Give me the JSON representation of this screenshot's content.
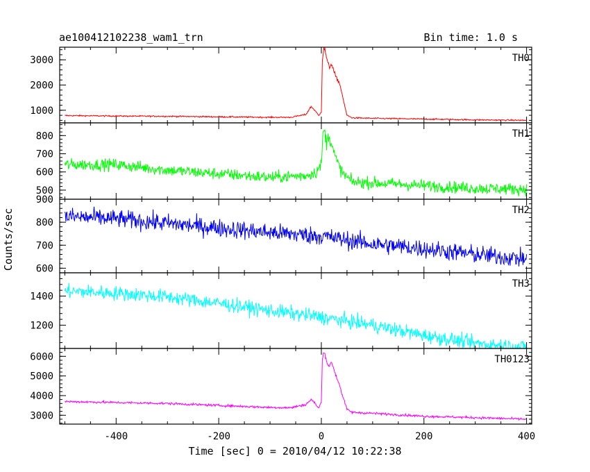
{
  "chart_data": {
    "type": "line",
    "title": "ae100412102238_wam1_trn",
    "bin_time": "Bin time: 1.0 s",
    "xlabel": "Time [sec] 0 = 2010/04/12 10:22:38",
    "ylabel": "Counts/sec",
    "xlim": [
      -510,
      410
    ],
    "xticks": [
      -400,
      -200,
      0,
      200,
      400
    ],
    "grid": false,
    "panels": [
      {
        "name": "TH0",
        "color": "#ff0000",
        "ylim": [
          500,
          3500
        ],
        "yticks": [
          1000,
          2000,
          3000
        ],
        "noise": 25,
        "points": [
          [
            -500,
            790
          ],
          [
            -400,
            770
          ],
          [
            -300,
            760
          ],
          [
            -200,
            740
          ],
          [
            -100,
            720
          ],
          [
            -60,
            720
          ],
          [
            -30,
            830
          ],
          [
            -20,
            1150
          ],
          [
            -12,
            980
          ],
          [
            -5,
            780
          ],
          [
            0,
            950
          ],
          [
            2,
            3000
          ],
          [
            5,
            3500
          ],
          [
            8,
            3300
          ],
          [
            12,
            2900
          ],
          [
            16,
            2700
          ],
          [
            20,
            2850
          ],
          [
            25,
            2500
          ],
          [
            30,
            2250
          ],
          [
            35,
            2100
          ],
          [
            40,
            1700
          ],
          [
            45,
            1200
          ],
          [
            50,
            800
          ],
          [
            60,
            700
          ],
          [
            100,
            680
          ],
          [
            200,
            650
          ],
          [
            300,
            620
          ],
          [
            400,
            600
          ]
        ]
      },
      {
        "name": "TH1",
        "color": "#00ff00",
        "ylim": [
          450,
          870
        ],
        "yticks": [
          500,
          600,
          700,
          800
        ],
        "noise": 30,
        "points": [
          [
            -500,
            640
          ],
          [
            -400,
            640
          ],
          [
            -300,
            610
          ],
          [
            -200,
            590
          ],
          [
            -100,
            570
          ],
          [
            -30,
            580
          ],
          [
            -10,
            600
          ],
          [
            0,
            640
          ],
          [
            3,
            800
          ],
          [
            6,
            830
          ],
          [
            10,
            760
          ],
          [
            15,
            800
          ],
          [
            20,
            760
          ],
          [
            25,
            700
          ],
          [
            30,
            660
          ],
          [
            40,
            600
          ],
          [
            50,
            570
          ],
          [
            60,
            545
          ],
          [
            100,
            540
          ],
          [
            200,
            525
          ],
          [
            300,
            510
          ],
          [
            400,
            505
          ]
        ]
      },
      {
        "name": "TH2",
        "color": "#0000ff",
        "ylim": [
          580,
          900
        ],
        "yticks": [
          600,
          700,
          800,
          900
        ],
        "noise": 36,
        "points": [
          [
            -500,
            825
          ],
          [
            -400,
            815
          ],
          [
            -300,
            795
          ],
          [
            -200,
            775
          ],
          [
            -100,
            755
          ],
          [
            0,
            740
          ],
          [
            100,
            705
          ],
          [
            200,
            685
          ],
          [
            300,
            660
          ],
          [
            400,
            640
          ]
        ]
      },
      {
        "name": "TH3",
        "color": "#00ffff",
        "ylim": [
          1040,
          1560
        ],
        "yticks": [
          1200,
          1400
        ],
        "noise": 45,
        "points": [
          [
            -500,
            1435
          ],
          [
            -400,
            1420
          ],
          [
            -300,
            1395
          ],
          [
            -200,
            1350
          ],
          [
            -100,
            1300
          ],
          [
            0,
            1255
          ],
          [
            100,
            1200
          ],
          [
            200,
            1130
          ],
          [
            300,
            1075
          ],
          [
            400,
            1050
          ]
        ]
      },
      {
        "name": "TH0123",
        "color": "#ff00ff",
        "ylim": [
          2550,
          6400
        ],
        "yticks": [
          3000,
          4000,
          5000,
          6000
        ],
        "noise": 55,
        "points": [
          [
            -500,
            3700
          ],
          [
            -400,
            3650
          ],
          [
            -300,
            3600
          ],
          [
            -200,
            3500
          ],
          [
            -100,
            3400
          ],
          [
            -60,
            3380
          ],
          [
            -30,
            3550
          ],
          [
            -20,
            3800
          ],
          [
            -12,
            3600
          ],
          [
            -5,
            3350
          ],
          [
            0,
            3700
          ],
          [
            2,
            5800
          ],
          [
            5,
            6300
          ],
          [
            8,
            6000
          ],
          [
            12,
            5600
          ],
          [
            16,
            5500
          ],
          [
            20,
            5700
          ],
          [
            25,
            5300
          ],
          [
            30,
            4900
          ],
          [
            35,
            4600
          ],
          [
            40,
            4100
          ],
          [
            45,
            3700
          ],
          [
            50,
            3300
          ],
          [
            60,
            3150
          ],
          [
            100,
            3100
          ],
          [
            200,
            2950
          ],
          [
            300,
            2880
          ],
          [
            400,
            2800
          ]
        ]
      }
    ]
  }
}
